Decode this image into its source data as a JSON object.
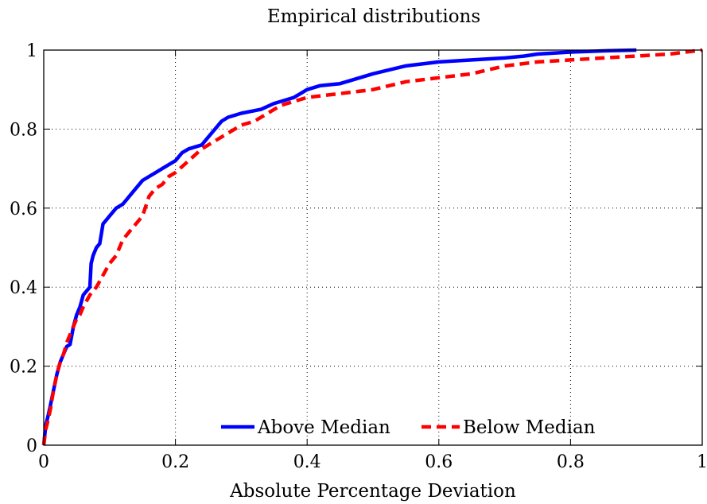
{
  "chart_data": {
    "type": "line",
    "title": "Empirical distributions",
    "xlabel": "Absolute Percentage Deviation",
    "ylabel": "",
    "xlim": [
      0,
      1
    ],
    "ylim": [
      0,
      1
    ],
    "xticks": [
      0,
      0.2,
      0.4,
      0.6,
      0.8,
      1
    ],
    "xtick_labels": [
      "0",
      "0.2",
      "0.4",
      "0.6",
      "0.8",
      "1"
    ],
    "yticks": [
      0,
      0.2,
      0.4,
      0.6,
      0.8,
      1
    ],
    "ytick_labels": [
      "0",
      "0.2",
      "0.4",
      "0.6",
      "0.8",
      "1"
    ],
    "grid": true,
    "legend_position": "bottom",
    "series": [
      {
        "name": "Above Median",
        "color": "#0000ff",
        "line_style": "solid",
        "x": [
          0.0,
          0.003,
          0.006,
          0.01,
          0.015,
          0.02,
          0.025,
          0.03,
          0.035,
          0.04,
          0.045,
          0.05,
          0.055,
          0.06,
          0.065,
          0.07,
          0.072,
          0.075,
          0.08,
          0.085,
          0.088,
          0.09,
          0.095,
          0.1,
          0.11,
          0.12,
          0.125,
          0.13,
          0.14,
          0.15,
          0.16,
          0.17,
          0.18,
          0.19,
          0.2,
          0.21,
          0.22,
          0.24,
          0.25,
          0.26,
          0.27,
          0.28,
          0.3,
          0.33,
          0.35,
          0.38,
          0.4,
          0.42,
          0.45,
          0.48,
          0.5,
          0.55,
          0.6,
          0.65,
          0.7,
          0.73,
          0.75,
          0.8,
          0.85,
          0.9
        ],
        "y": [
          0.0,
          0.05,
          0.07,
          0.1,
          0.14,
          0.18,
          0.21,
          0.23,
          0.25,
          0.255,
          0.3,
          0.33,
          0.35,
          0.38,
          0.39,
          0.4,
          0.46,
          0.48,
          0.5,
          0.51,
          0.54,
          0.56,
          0.57,
          0.58,
          0.6,
          0.61,
          0.62,
          0.63,
          0.65,
          0.67,
          0.68,
          0.69,
          0.7,
          0.71,
          0.72,
          0.74,
          0.75,
          0.76,
          0.78,
          0.8,
          0.82,
          0.83,
          0.84,
          0.85,
          0.865,
          0.88,
          0.9,
          0.91,
          0.915,
          0.93,
          0.94,
          0.96,
          0.97,
          0.975,
          0.98,
          0.985,
          0.99,
          0.995,
          0.998,
          1.0
        ]
      },
      {
        "name": "Below Median",
        "color": "#ff0000",
        "line_style": "dashed",
        "x": [
          0.0,
          0.003,
          0.006,
          0.01,
          0.015,
          0.02,
          0.025,
          0.03,
          0.035,
          0.04,
          0.045,
          0.05,
          0.055,
          0.06,
          0.07,
          0.08,
          0.09,
          0.1,
          0.11,
          0.12,
          0.13,
          0.14,
          0.15,
          0.16,
          0.17,
          0.18,
          0.19,
          0.2,
          0.22,
          0.24,
          0.26,
          0.28,
          0.3,
          0.32,
          0.34,
          0.36,
          0.38,
          0.4,
          0.45,
          0.5,
          0.55,
          0.6,
          0.65,
          0.7,
          0.75,
          0.8,
          0.85,
          0.9,
          0.95,
          1.0
        ],
        "y": [
          0.0,
          0.04,
          0.06,
          0.09,
          0.14,
          0.18,
          0.21,
          0.23,
          0.26,
          0.28,
          0.3,
          0.32,
          0.33,
          0.35,
          0.38,
          0.4,
          0.43,
          0.46,
          0.48,
          0.52,
          0.54,
          0.56,
          0.58,
          0.63,
          0.65,
          0.66,
          0.68,
          0.69,
          0.72,
          0.75,
          0.77,
          0.79,
          0.81,
          0.82,
          0.84,
          0.86,
          0.87,
          0.88,
          0.89,
          0.9,
          0.92,
          0.93,
          0.94,
          0.96,
          0.97,
          0.975,
          0.98,
          0.985,
          0.99,
          1.0
        ]
      }
    ]
  }
}
